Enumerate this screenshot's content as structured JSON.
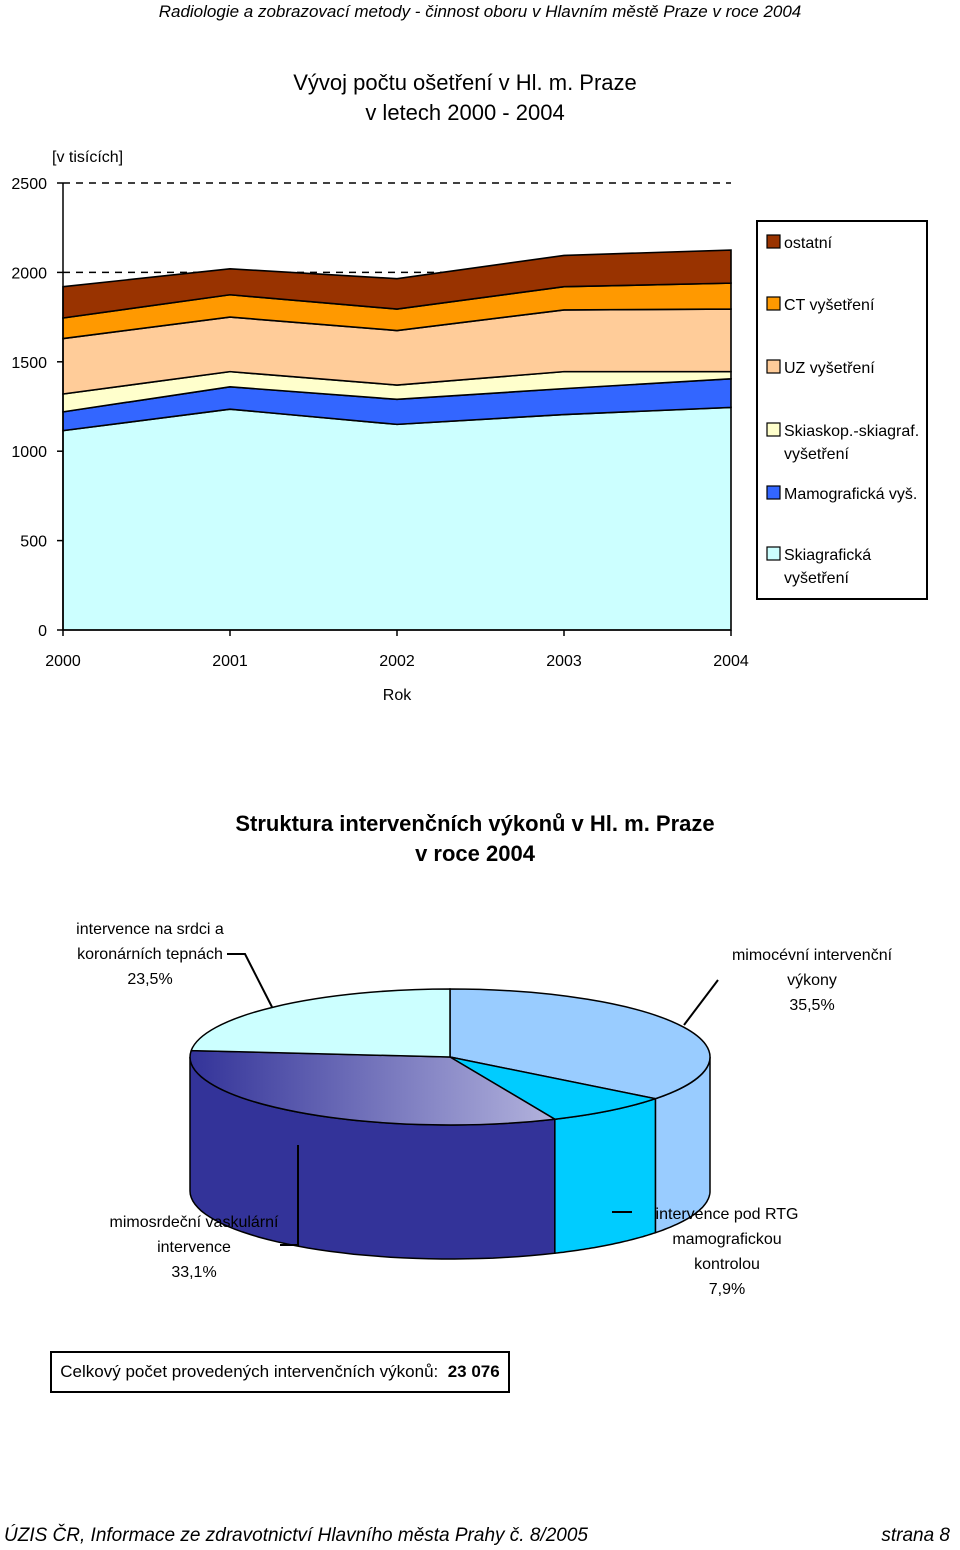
{
  "header": "Radiologie a zobrazovací metody - činnost oboru v Hlavním městě Praze v roce 2004",
  "chart_data": [
    {
      "type": "area",
      "stacked": true,
      "title": [
        "Vývoj počtu ošetření v Hl. m. Praze",
        "v letech 2000 - 2004"
      ],
      "units_label": "[v tisících]",
      "xlabel": "Rok",
      "categories": [
        "2000",
        "2001",
        "2002",
        "2003",
        "2004"
      ],
      "ylim": [
        0,
        2500
      ],
      "yticks": [
        "0",
        "500",
        "1000",
        "1500",
        "2000",
        "2500"
      ],
      "grid": "dashed at 2000 and 2500",
      "legend_position": "right",
      "series": [
        {
          "name": "Skiagrafická vyšetření",
          "color": "#ccffff",
          "values": [
            1115,
            1235,
            1150,
            1205,
            1245
          ]
        },
        {
          "name": "Mamografická vyš.",
          "color": "#3366ff",
          "values": [
            105,
            125,
            140,
            145,
            160
          ]
        },
        {
          "name": "Skiaskop.-skiagraf. vyšetření",
          "color": "#ffffcc",
          "values": [
            100,
            85,
            80,
            95,
            40
          ]
        },
        {
          "name": "UZ vyšetření",
          "color": "#ffcc99",
          "values": [
            310,
            305,
            305,
            345,
            350
          ]
        },
        {
          "name": "CT vyšetření",
          "color": "#ff9900",
          "values": [
            115,
            125,
            120,
            130,
            145
          ]
        },
        {
          "name": "ostatní",
          "color": "#993300",
          "values": [
            175,
            145,
            170,
            175,
            185
          ]
        }
      ],
      "legend": [
        {
          "label": "ostatní",
          "color": "#993300"
        },
        {
          "label": "CT vyšetření",
          "color": "#ff9900"
        },
        {
          "label": "UZ vyšetření",
          "color": "#ffcc99"
        },
        {
          "label": "Skiaskop.-skiagraf. vyšetření",
          "color": "#ffffcc"
        },
        {
          "label": "Mamografická vyš.",
          "color": "#3366ff"
        },
        {
          "label": "Skiagrafická vyšetření",
          "color": "#ccffff"
        }
      ]
    },
    {
      "type": "pie",
      "title": [
        "Struktura intervenčních výkonů v Hl. m. Praze",
        "v roce 2004"
      ],
      "slices": [
        {
          "label": "mimocévní intervenční výkony",
          "value": 35.5,
          "display": "35,5%",
          "color": "#99ccff"
        },
        {
          "label": "intervence pod RTG mamografickou kontrolou",
          "value": 7.9,
          "display": "7,9%",
          "color": "#00ccff"
        },
        {
          "label": "mimosrdeční vaskulární intervence",
          "value": 33.1,
          "display": "33,1%",
          "color": "#333399"
        },
        {
          "label": "intervence na srdci a koronárních tepnách",
          "value": 23.5,
          "display": "23,5%",
          "color": "#ccffff"
        }
      ],
      "labels_text": {
        "srdce": [
          "intervence na srdci a",
          "koronárních tepnách",
          "23,5%"
        ],
        "mimocevni": [
          "mimocévní intervenční",
          "výkony",
          "35,5%"
        ],
        "vaskularni": [
          "mimosrdeční vaskulární",
          "intervence",
          "33,1%"
        ],
        "rtg": [
          "intervence pod RTG",
          "mamografickou",
          "kontrolou",
          "7,9%"
        ]
      }
    }
  ],
  "total": {
    "label": "Celkový počet provedených intervenčních výkonů:",
    "value": "23 076"
  },
  "footer": {
    "left": "ÚZIS ČR, Informace ze zdravotnictví Hlavního města Prahy č. 8/2005",
    "right": "strana 8"
  }
}
